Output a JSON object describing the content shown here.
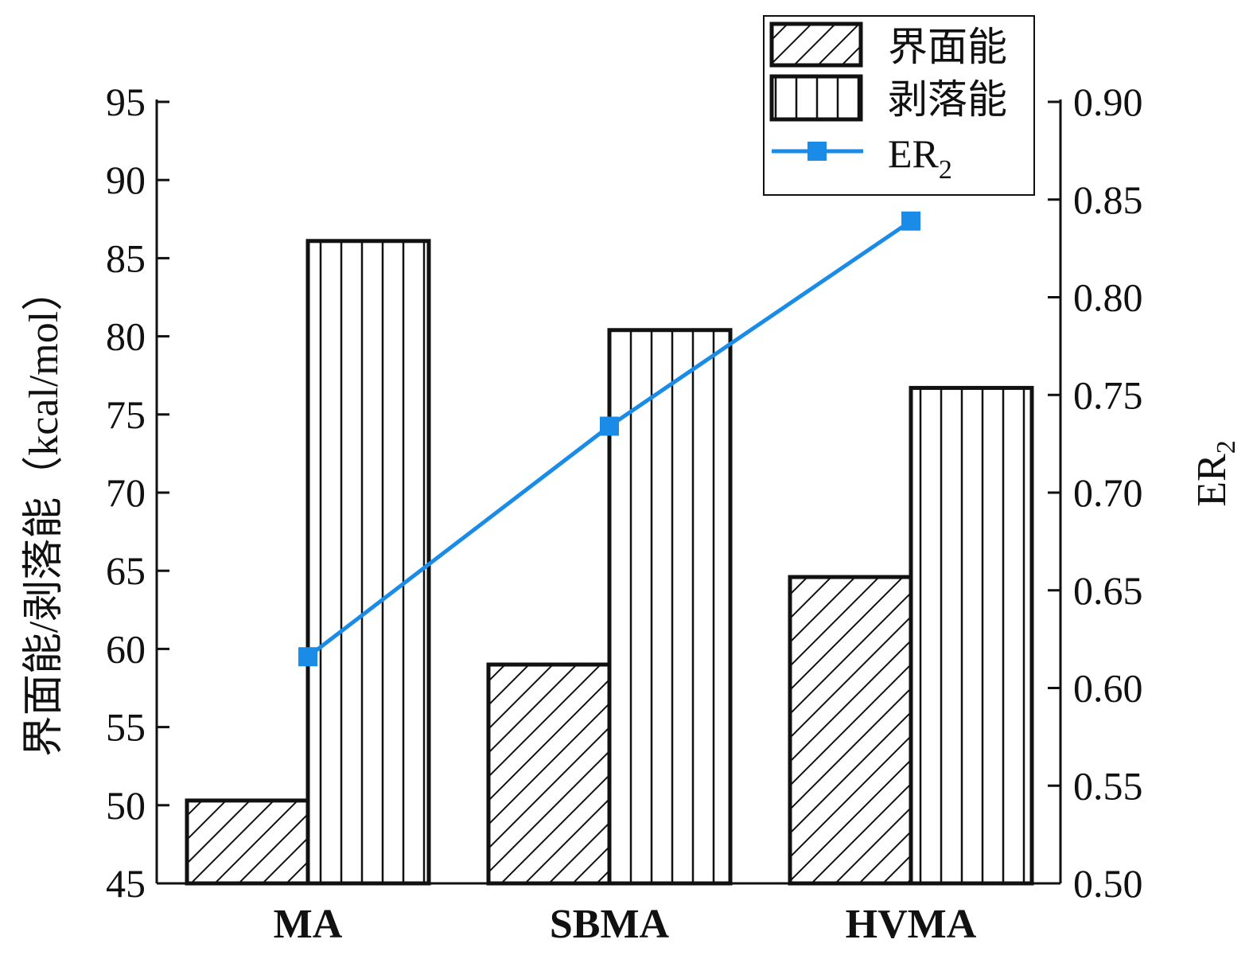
{
  "chart_data": {
    "type": "bar",
    "categories": [
      "MA",
      "SBMA",
      "HVMA"
    ],
    "series": [
      {
        "name": "界面能",
        "values": [
          50.3,
          59.0,
          64.6
        ],
        "pattern": "diagonal"
      },
      {
        "name": "剥落能",
        "values": [
          86.1,
          80.4,
          76.7
        ],
        "pattern": "vertical"
      }
    ],
    "line_series": {
      "name": "ER",
      "name_sub": "2",
      "values": [
        0.616,
        0.734,
        0.839
      ],
      "color": "#1a8ce8",
      "axis": "right"
    },
    "ylabel": "界面能/剥落能（kcal/mol）",
    "ylabel_right": "ER",
    "ylabel_right_sub": "2",
    "ylim": [
      45,
      95
    ],
    "ylim_right": [
      0.5,
      0.9
    ],
    "yticks": [
      "45",
      "50",
      "55",
      "60",
      "65",
      "70",
      "75",
      "80",
      "85",
      "90",
      "95"
    ],
    "yticks_right": [
      "0.50",
      "0.55",
      "0.60",
      "0.65",
      "0.70",
      "0.75",
      "0.80",
      "0.85",
      "0.90"
    ],
    "legend_position": "top-right",
    "grid": false
  }
}
